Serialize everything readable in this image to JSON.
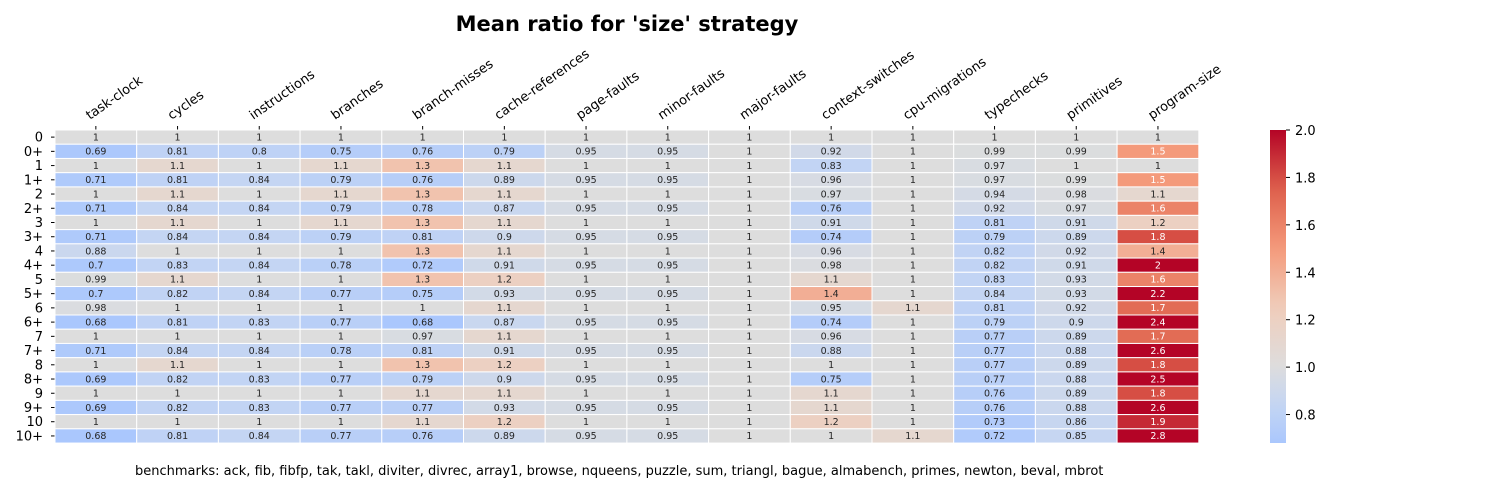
{
  "chart_data": {
    "type": "heatmap",
    "title": "Mean ratio for 'size' strategy",
    "columns": [
      "task-clock",
      "cycles",
      "instructions",
      "branches",
      "branch-misses",
      "cache-references",
      "page-faults",
      "minor-faults",
      "major-faults",
      "context-switches",
      "cpu-migrations",
      "typechecks",
      "primitives",
      "program-size"
    ],
    "rows": [
      "0",
      "0+",
      "1",
      "1+",
      "2",
      "2+",
      "3",
      "3+",
      "4",
      "4+",
      "5",
      "5+",
      "6",
      "6+",
      "7",
      "7+",
      "8",
      "8+",
      "9",
      "9+",
      "10",
      "10+"
    ],
    "values": [
      [
        1,
        1,
        1,
        1,
        1,
        1,
        1,
        1,
        1,
        1,
        1,
        1,
        1,
        1
      ],
      [
        0.69,
        0.81,
        0.8,
        0.75,
        0.76,
        0.79,
        0.95,
        0.95,
        1,
        0.92,
        1,
        0.99,
        0.99,
        1.5
      ],
      [
        1,
        1.1,
        1,
        1.1,
        1.3,
        1.1,
        1,
        1,
        1,
        0.83,
        1,
        0.97,
        1,
        1
      ],
      [
        0.71,
        0.81,
        0.84,
        0.79,
        0.76,
        0.89,
        0.95,
        0.95,
        1,
        0.96,
        1,
        0.97,
        0.99,
        1.5
      ],
      [
        1,
        1.1,
        1,
        1.1,
        1.3,
        1.1,
        1,
        1,
        1,
        0.97,
        1,
        0.94,
        0.98,
        1.1
      ],
      [
        0.71,
        0.84,
        0.84,
        0.79,
        0.78,
        0.87,
        0.95,
        0.95,
        1,
        0.76,
        1,
        0.92,
        0.97,
        1.6
      ],
      [
        1,
        1.1,
        1,
        1.1,
        1.3,
        1.1,
        1,
        1,
        1,
        0.91,
        1,
        0.81,
        0.91,
        1.2
      ],
      [
        0.71,
        0.84,
        0.84,
        0.79,
        0.81,
        0.9,
        0.95,
        0.95,
        1,
        0.74,
        1,
        0.79,
        0.89,
        1.8
      ],
      [
        0.88,
        1,
        1,
        1,
        1.3,
        1.1,
        1,
        1,
        1,
        0.96,
        1,
        0.82,
        0.92,
        1.4
      ],
      [
        0.7,
        0.83,
        0.84,
        0.78,
        0.72,
        0.91,
        0.95,
        0.95,
        1,
        0.98,
        1,
        0.82,
        0.91,
        2
      ],
      [
        0.99,
        1.1,
        1,
        1,
        1.3,
        1.2,
        1,
        1,
        1,
        1.1,
        1,
        0.83,
        0.93,
        1.6
      ],
      [
        0.7,
        0.82,
        0.84,
        0.77,
        0.75,
        0.93,
        0.95,
        0.95,
        1,
        1.4,
        1,
        0.84,
        0.93,
        2.2
      ],
      [
        0.98,
        1,
        1,
        1,
        1,
        1.1,
        1,
        1,
        1,
        0.95,
        1.1,
        0.81,
        0.92,
        1.7
      ],
      [
        0.68,
        0.81,
        0.83,
        0.77,
        0.68,
        0.87,
        0.95,
        0.95,
        1,
        0.74,
        1,
        0.79,
        0.9,
        2.4
      ],
      [
        1,
        1,
        1,
        1,
        0.97,
        1.1,
        1,
        1,
        1,
        0.96,
        1,
        0.77,
        0.89,
        1.7
      ],
      [
        0.71,
        0.84,
        0.84,
        0.78,
        0.81,
        0.91,
        0.95,
        0.95,
        1,
        0.88,
        1,
        0.77,
        0.88,
        2.6
      ],
      [
        1,
        1.1,
        1,
        1,
        1.3,
        1.2,
        1,
        1,
        1,
        1,
        1,
        0.77,
        0.89,
        1.8
      ],
      [
        0.69,
        0.82,
        0.83,
        0.77,
        0.79,
        0.9,
        0.95,
        0.95,
        1,
        0.75,
        1,
        0.77,
        0.88,
        2.5
      ],
      [
        1,
        1,
        1,
        1,
        1.1,
        1.1,
        1,
        1,
        1,
        1.1,
        1,
        0.76,
        0.89,
        1.8
      ],
      [
        0.69,
        0.82,
        0.83,
        0.77,
        0.77,
        0.93,
        0.95,
        0.95,
        1,
        1.1,
        1,
        0.76,
        0.88,
        2.6
      ],
      [
        1,
        1,
        1,
        1,
        1.1,
        1.2,
        1,
        1,
        1,
        1.2,
        1,
        0.73,
        0.86,
        1.9
      ],
      [
        0.68,
        0.81,
        0.84,
        0.77,
        0.76,
        0.89,
        0.95,
        0.95,
        1,
        1,
        1.1,
        0.72,
        0.85,
        2.8
      ]
    ],
    "colorbar": {
      "min": 0.68,
      "max": 2.0,
      "ticks": [
        0.8,
        1.0,
        1.2,
        1.4,
        1.6,
        1.8,
        2.0
      ],
      "tick_labels": [
        "0.8",
        "1.0",
        "1.2",
        "1.4",
        "1.6",
        "1.8",
        "2.0"
      ]
    },
    "colormap": "coolwarm",
    "footer": "benchmarks: ack, fib, fibfp, tak, takl, diviter, divrec, array1, browse, nqueens, puzzle, sum, triangl, bague, almabench, primes, newton, beval, mbrot"
  }
}
